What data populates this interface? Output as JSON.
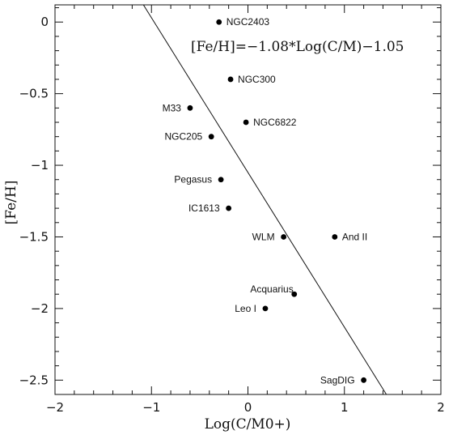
{
  "chart_data": {
    "type": "scatter",
    "xlabel": "Log(C/M0+)",
    "ylabel": "[Fe/H]",
    "xlim": [
      -2,
      2
    ],
    "ylim": [
      -2.6,
      0.12
    ],
    "grid": false,
    "x_ticks": [
      {
        "value": -2,
        "label": "−2"
      },
      {
        "value": -1,
        "label": "−1"
      },
      {
        "value": 0,
        "label": "0"
      },
      {
        "value": 1,
        "label": "1"
      },
      {
        "value": 2,
        "label": "2"
      }
    ],
    "y_ticks": [
      {
        "value": 0,
        "label": "0"
      },
      {
        "value": -0.5,
        "label": "−0.5"
      },
      {
        "value": -1,
        "label": "−1"
      },
      {
        "value": -1.5,
        "label": "−1.5"
      },
      {
        "value": -2,
        "label": "−2"
      },
      {
        "value": -2.5,
        "label": "−2.5"
      }
    ],
    "points": [
      {
        "name": "NGC2403",
        "x": -0.3,
        "y": 0.0,
        "label_side": "right"
      },
      {
        "name": "NGC300",
        "x": -0.18,
        "y": -0.4,
        "label_side": "right"
      },
      {
        "name": "M33",
        "x": -0.6,
        "y": -0.6,
        "label_side": "left"
      },
      {
        "name": "NGC6822",
        "x": -0.02,
        "y": -0.7,
        "label_side": "right"
      },
      {
        "name": "NGC205",
        "x": -0.38,
        "y": -0.8,
        "label_side": "left"
      },
      {
        "name": "Pegasus",
        "x": -0.28,
        "y": -1.1,
        "label_side": "left"
      },
      {
        "name": "IC1613",
        "x": -0.2,
        "y": -1.3,
        "label_side": "left"
      },
      {
        "name": "WLM",
        "x": 0.37,
        "y": -1.5,
        "label_side": "left"
      },
      {
        "name": "And II",
        "x": 0.9,
        "y": -1.5,
        "label_side": "right"
      },
      {
        "name": "Acquarius",
        "x": 0.48,
        "y": -1.9,
        "label_side": "upper-left"
      },
      {
        "name": "Leo I",
        "x": 0.18,
        "y": -2.0,
        "label_side": "left"
      },
      {
        "name": "SagDIG",
        "x": 1.2,
        "y": -2.5,
        "label_side": "left"
      }
    ],
    "fit_line": {
      "slope": -1.08,
      "intercept": -1.05
    },
    "annotation": "[Fe/H]=−1.08*Log(C/M)−1.05"
  }
}
